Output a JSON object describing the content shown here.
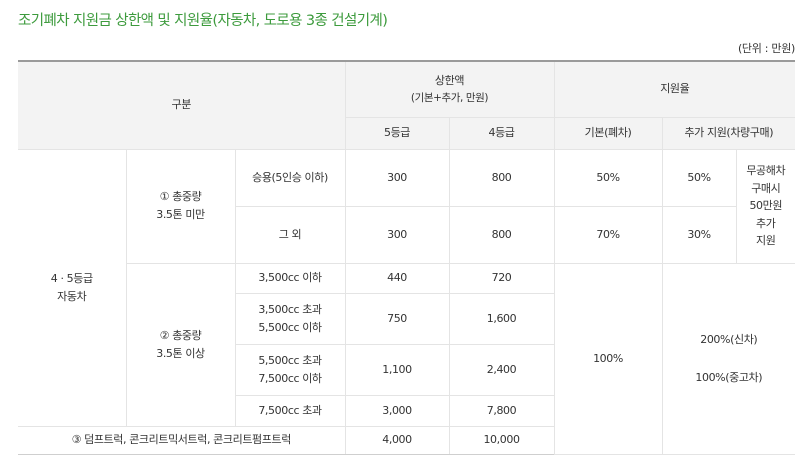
{
  "title": "조기폐차 지원금 상한액 및 지원율(자동차, 도로용 3종 건설기계)",
  "unit": "(단위 : 만원)",
  "header": {
    "category": "구분",
    "limit": "상한액",
    "limit_sub": "(기본+추가, 만원)",
    "rate": "지원율",
    "grade5": "5등급",
    "grade4": "4등급",
    "base": "기본(폐차)",
    "extra": "추가 지원(차량구매)"
  },
  "group": {
    "line1": "4 · 5등급",
    "line2": "자동차"
  },
  "sub1": {
    "line1": "① 총중량",
    "line2": "3.5톤 미만",
    "rows": [
      {
        "label": "승용(5인승 이하)",
        "g5": "300",
        "g4": "800",
        "base": "50%",
        "extra": "50%"
      },
      {
        "label": "그 외",
        "g5": "300",
        "g4": "800",
        "base": "70%",
        "extra": "30%"
      }
    ],
    "note": [
      "무공해차",
      "구매시",
      "50만원",
      "추가",
      "지원"
    ]
  },
  "sub2": {
    "line1": "② 총중량",
    "line2": "3.5톤 이상",
    "rows": [
      {
        "label1": "3,500cc 이하",
        "label2": "",
        "g5": "440",
        "g4": "720"
      },
      {
        "label1": "3,500cc 초과",
        "label2": "5,500cc 이하",
        "g5": "750",
        "g4": "1,600"
      },
      {
        "label1": "5,500cc 초과",
        "label2": "7,500cc 이하",
        "g5": "1,100",
        "g4": "2,400"
      },
      {
        "label1": "7,500cc 초과",
        "label2": "",
        "g5": "3,000",
        "g4": "7,800"
      }
    ],
    "base": "100%",
    "extra1": "200%(신차)",
    "extra2": "100%(중고차)"
  },
  "sub3": {
    "label": "③ 덤프트럭, 콘크리트믹서트럭, 콘크리트펌프트럭",
    "g5": "4,000",
    "g4": "10,000"
  }
}
